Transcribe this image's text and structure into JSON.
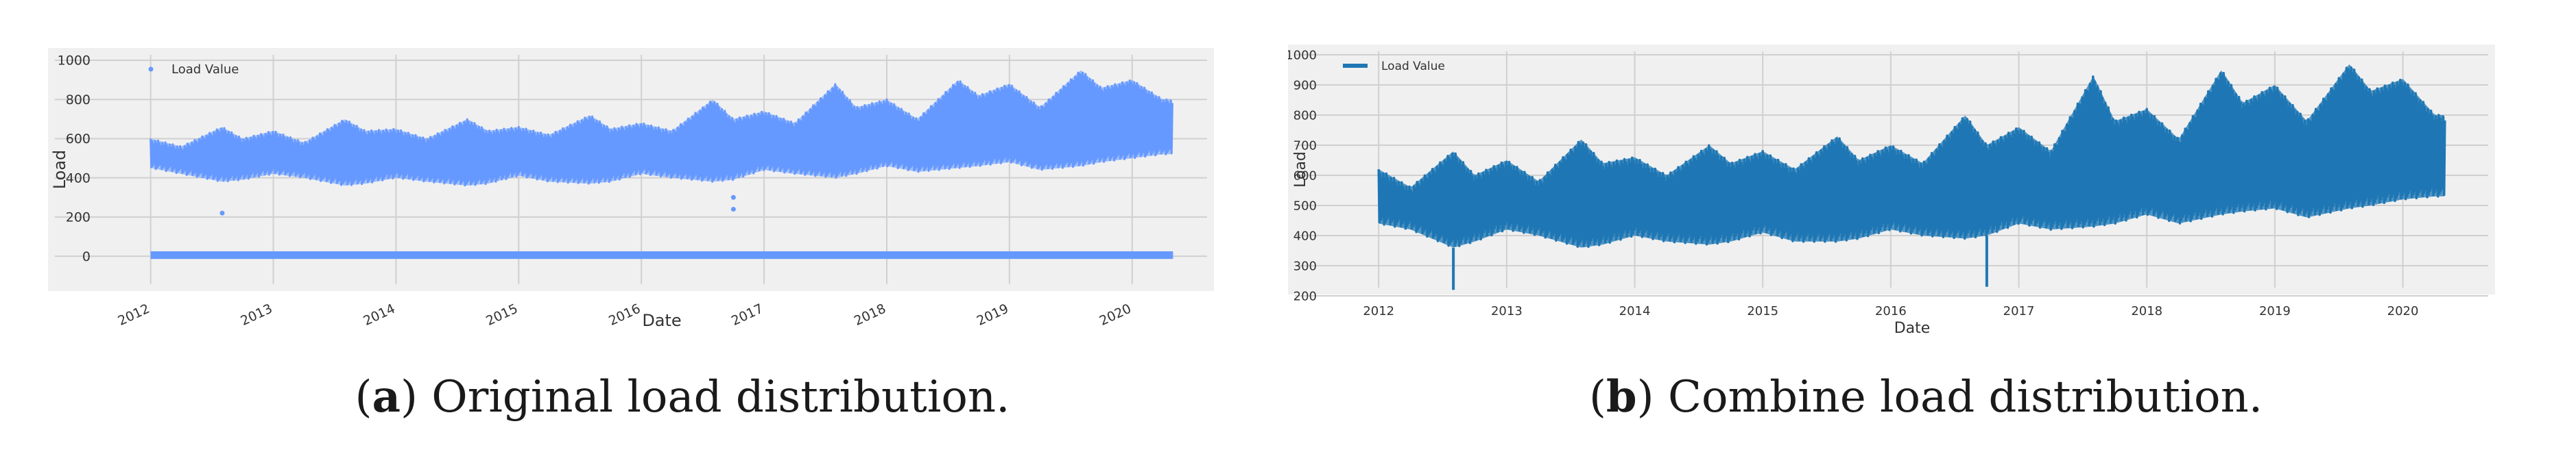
{
  "figure": {
    "panels": [
      {
        "caption_letter": "a",
        "caption_prefix": "(",
        "caption_suffix": ") Original load distribution."
      },
      {
        "caption_letter": "b",
        "caption_prefix": "(",
        "caption_suffix": ") Combine load distribution."
      }
    ]
  },
  "colors": {
    "panel_background": "#f0f0f0",
    "grid": "#d0d0d0",
    "series_a": "#6699ff",
    "series_b": "#1f77b4"
  },
  "chart_data": [
    {
      "type": "scatter",
      "title": "",
      "xlabel": "Date",
      "ylabel": "Load",
      "xlim": [
        "2011-09-01",
        "2020-09-01"
      ],
      "ylim": [
        -80,
        1000
      ],
      "x_ticks": [
        "2012",
        "2013",
        "2014",
        "2015",
        "2016",
        "2017",
        "2018",
        "2019",
        "2020"
      ],
      "x_tick_rotation": "rotated",
      "y_ticks": [
        0,
        200,
        400,
        600,
        800,
        1000
      ],
      "grid": true,
      "legend": {
        "position": "top-left",
        "entries": [
          "Load Value"
        ]
      },
      "series": [
        {
          "name": "Load Value",
          "x_range": [
            "2012-01-01",
            "2020-05-01"
          ],
          "seasonal_envelope": {
            "x": [
              "2012-01",
              "2012-04",
              "2012-08",
              "2012-10",
              "2013-01",
              "2013-04",
              "2013-08",
              "2013-10",
              "2014-01",
              "2014-04",
              "2014-08",
              "2014-10",
              "2015-01",
              "2015-04",
              "2015-08",
              "2015-10",
              "2016-01",
              "2016-04",
              "2016-08",
              "2016-10",
              "2017-01",
              "2017-04",
              "2017-08",
              "2017-10",
              "2018-01",
              "2018-04",
              "2018-08",
              "2018-10",
              "2019-01",
              "2019-04",
              "2019-08",
              "2019-10",
              "2020-01",
              "2020-04"
            ],
            "low": [
              450,
              420,
              380,
              390,
              420,
              400,
              360,
              370,
              400,
              380,
              360,
              370,
              410,
              380,
              370,
              380,
              420,
              400,
              380,
              390,
              440,
              420,
              400,
              420,
              460,
              430,
              450,
              460,
              480,
              440,
              460,
              480,
              500,
              520
            ],
            "high": [
              600,
              560,
              660,
              600,
              640,
              580,
              700,
              640,
              650,
              600,
              700,
              640,
              660,
              620,
              720,
              650,
              680,
              640,
              800,
              700,
              740,
              680,
              880,
              760,
              800,
              700,
              900,
              820,
              880,
              760,
              950,
              860,
              900,
              800
            ]
          },
          "outliers": [
            {
              "x": "2012-08",
              "y": 220
            },
            {
              "x": "2016-10",
              "y": 240
            },
            {
              "x": "2016-10",
              "y": 300
            }
          ],
          "near_zero_band": {
            "x_range": [
              "2012-01-01",
              "2020-05-01"
            ],
            "y_low": 0,
            "y_high": 25
          }
        }
      ]
    },
    {
      "type": "line",
      "title": "",
      "xlabel": "Date",
      "ylabel": "Load",
      "xlim": [
        "2011-09-01",
        "2020-09-01"
      ],
      "ylim": [
        200,
        1000
      ],
      "x_ticks": [
        "2012",
        "2013",
        "2014",
        "2015",
        "2016",
        "2017",
        "2018",
        "2019",
        "2020"
      ],
      "x_tick_rotation": "none",
      "y_ticks": [
        200,
        300,
        400,
        500,
        600,
        700,
        800,
        900,
        1000
      ],
      "grid": true,
      "legend": {
        "position": "top-left",
        "entries": [
          "Load Value"
        ]
      },
      "series": [
        {
          "name": "Load Value",
          "x_range": [
            "2012-01-01",
            "2020-05-01"
          ],
          "seasonal_envelope": {
            "x": [
              "2012-01",
              "2012-04",
              "2012-08",
              "2012-10",
              "2013-01",
              "2013-04",
              "2013-08",
              "2013-10",
              "2014-01",
              "2014-04",
              "2014-08",
              "2014-10",
              "2015-01",
              "2015-04",
              "2015-08",
              "2015-10",
              "2016-01",
              "2016-04",
              "2016-08",
              "2016-10",
              "2017-01",
              "2017-04",
              "2017-08",
              "2017-10",
              "2018-01",
              "2018-04",
              "2018-08",
              "2018-10",
              "2019-01",
              "2019-04",
              "2019-08",
              "2019-10",
              "2020-01",
              "2020-04"
            ],
            "low": [
              440,
              420,
              360,
              380,
              420,
              400,
              360,
              370,
              400,
              380,
              370,
              380,
              410,
              380,
              380,
              390,
              420,
              400,
              390,
              400,
              440,
              420,
              430,
              440,
              470,
              440,
              470,
              480,
              490,
              460,
              490,
              500,
              520,
              530
            ],
            "high": [
              620,
              560,
              680,
              600,
              650,
              580,
              720,
              640,
              660,
              600,
              700,
              640,
              680,
              620,
              730,
              650,
              700,
              640,
              800,
              700,
              760,
              680,
              930,
              780,
              820,
              720,
              950,
              840,
              900,
              780,
              970,
              880,
              920,
              800
            ]
          },
          "outliers": [
            {
              "x": "2012-08",
              "y": 220
            },
            {
              "x": "2016-10",
              "y": 230
            }
          ]
        }
      ]
    }
  ]
}
